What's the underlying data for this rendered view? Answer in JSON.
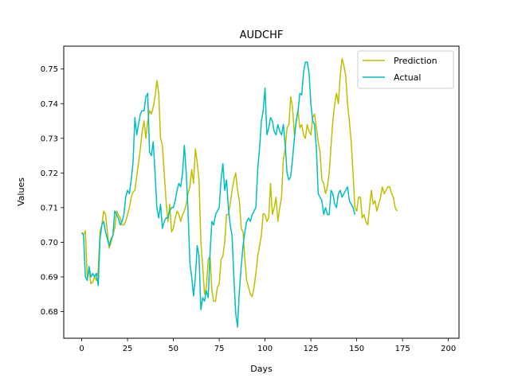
{
  "chart_data": {
    "type": "line",
    "title": "AUDCHF",
    "xlabel": "Days",
    "ylabel": "Values",
    "xlim": [
      -9.8,
      205.8
    ],
    "ylim": [
      0.6723,
      0.7566
    ],
    "xticks": [
      0,
      25,
      50,
      75,
      100,
      125,
      150,
      175,
      200
    ],
    "yticks": [
      0.68,
      0.69,
      0.7,
      0.71,
      0.72,
      0.73,
      0.74,
      0.75
    ],
    "ytick_labels": [
      "0.68",
      "0.69",
      "0.70",
      "0.71",
      "0.72",
      "0.73",
      "0.74",
      "0.75"
    ],
    "grid": false,
    "legend_position": "upper-right",
    "series": [
      {
        "name": "Prediction",
        "color": "#bfbf00",
        "values": [
          0.7028,
          0.7022,
          0.7033,
          0.69,
          0.692,
          0.688,
          0.6885,
          0.69,
          0.689,
          0.692,
          0.703,
          0.705,
          0.709,
          0.708,
          0.703,
          0.6983,
          0.7,
          0.702,
          0.704,
          0.709,
          0.708,
          0.707,
          0.705,
          0.705,
          0.706,
          0.708,
          0.71,
          0.713,
          0.7145,
          0.715,
          0.719,
          0.723,
          0.727,
          0.732,
          0.735,
          0.73,
          0.735,
          0.738,
          0.737,
          0.739,
          0.742,
          0.7467,
          0.743,
          0.73,
          0.728,
          0.72,
          0.712,
          0.706,
          0.711,
          0.703,
          0.704,
          0.707,
          0.709,
          0.708,
          0.706,
          0.708,
          0.709,
          0.711,
          0.714,
          0.716,
          0.721,
          0.717,
          0.727,
          0.723,
          0.718,
          0.7,
          0.693,
          0.685,
          0.687,
          0.695,
          0.696,
          0.686,
          0.683,
          0.683,
          0.687,
          0.688,
          0.695,
          0.696,
          0.7,
          0.708,
          0.708,
          0.711,
          0.715,
          0.718,
          0.72,
          0.715,
          0.712,
          0.704,
          0.703,
          0.695,
          0.689,
          0.687,
          0.685,
          0.6843,
          0.687,
          0.691,
          0.696,
          0.699,
          0.702,
          0.7083,
          0.708,
          0.706,
          0.707,
          0.717,
          0.708,
          0.71,
          0.713,
          0.706,
          0.71,
          0.713,
          0.724,
          0.727,
          0.733,
          0.734,
          0.742,
          0.739,
          0.731,
          0.735,
          0.738,
          0.733,
          0.734,
          0.731,
          0.73,
          0.734,
          0.732,
          0.731,
          0.736,
          0.737,
          0.733,
          0.729,
          0.726,
          0.718,
          0.717,
          0.714,
          0.716,
          0.72,
          0.728,
          0.735,
          0.74,
          0.743,
          0.74,
          0.748,
          0.753,
          0.751,
          0.748,
          0.74,
          0.735,
          0.729,
          0.72,
          0.71,
          0.709,
          0.713,
          0.713,
          0.707,
          0.708,
          0.706,
          0.705,
          0.71,
          0.715,
          0.711,
          0.712,
          0.709,
          0.711,
          0.713,
          0.716,
          0.714,
          0.715,
          0.716,
          0.716,
          0.714,
          0.713,
          0.71,
          0.709
        ]
      },
      {
        "name": "Actual",
        "color": "#00bfbf",
        "values": [
          0.7028,
          0.702,
          0.69,
          0.689,
          0.693,
          0.69,
          0.691,
          0.69,
          0.691,
          0.6875,
          0.701,
          0.705,
          0.706,
          0.703,
          0.701,
          0.699,
          0.701,
          0.702,
          0.709,
          0.708,
          0.707,
          0.705,
          0.706,
          0.708,
          0.713,
          0.715,
          0.714,
          0.718,
          0.723,
          0.736,
          0.731,
          0.734,
          0.737,
          0.738,
          0.738,
          0.742,
          0.743,
          0.726,
          0.725,
          0.729,
          0.72,
          0.71,
          0.707,
          0.711,
          0.704,
          0.706,
          0.707,
          0.707,
          0.709,
          0.71,
          0.71,
          0.712,
          0.715,
          0.717,
          0.716,
          0.72,
          0.728,
          0.72,
          0.709,
          0.694,
          0.69,
          0.6845,
          0.69,
          0.699,
          0.696,
          0.6805,
          0.684,
          0.683,
          0.686,
          0.684,
          0.697,
          0.706,
          0.705,
          0.708,
          0.709,
          0.71,
          0.718,
          0.7227,
          0.715,
          0.718,
          0.71,
          0.705,
          0.702,
          0.69,
          0.6795,
          0.6755,
          0.686,
          0.693,
          0.699,
          0.703,
          0.706,
          0.707,
          0.706,
          0.708,
          0.709,
          0.71,
          0.721,
          0.727,
          0.735,
          0.738,
          0.7445,
          0.731,
          0.733,
          0.736,
          0.735,
          0.732,
          0.731,
          0.734,
          0.732,
          0.731,
          0.734,
          0.728,
          0.72,
          0.718,
          0.719,
          0.724,
          0.73,
          0.735,
          0.738,
          0.743,
          0.7425,
          0.749,
          0.752,
          0.752,
          0.749,
          0.74,
          0.735,
          0.734,
          0.727,
          0.714,
          0.713,
          0.712,
          0.708,
          0.71,
          0.708,
          0.708,
          0.715,
          0.714,
          0.711,
          0.71,
          0.714,
          0.715,
          0.713,
          0.714,
          0.715,
          0.716,
          0.712,
          0.711,
          0.71,
          0.708
        ]
      }
    ]
  }
}
